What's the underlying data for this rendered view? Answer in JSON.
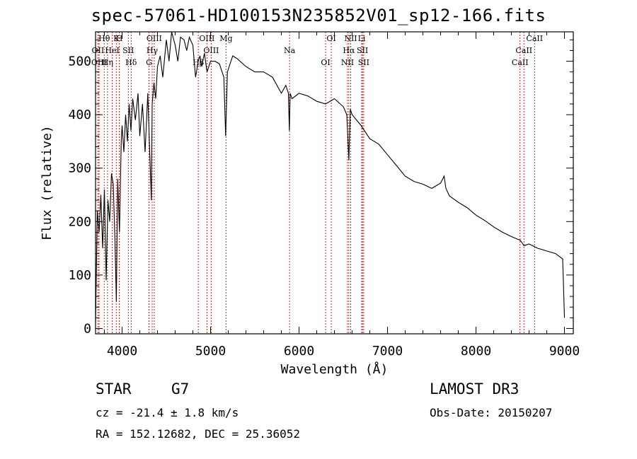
{
  "chart_data": {
    "type": "line",
    "title": "spec-57061-HD100153N235852V01_sp12-166.fits",
    "xlabel": "Wavelength (Å)",
    "ylabel": "Flux (relative)",
    "xlim": [
      3700,
      9100
    ],
    "ylim": [
      -10,
      555
    ],
    "x_ticks": [
      4000,
      5000,
      6000,
      7000,
      8000,
      9000
    ],
    "y_ticks": [
      0,
      100,
      200,
      300,
      400,
      500
    ],
    "grid": false,
    "series": [
      {
        "name": "spectrum",
        "x": [
          3700,
          3720,
          3740,
          3760,
          3780,
          3800,
          3820,
          3840,
          3860,
          3880,
          3900,
          3920,
          3935,
          3950,
          3970,
          3990,
          4000,
          4020,
          4040,
          4060,
          4080,
          4100,
          4120,
          4150,
          4180,
          4200,
          4230,
          4260,
          4290,
          4310,
          4330,
          4340,
          4360,
          4380,
          4400,
          4430,
          4460,
          4500,
          4530,
          4560,
          4600,
          4630,
          4660,
          4700,
          4730,
          4760,
          4800,
          4830,
          4860,
          4880,
          4900,
          4930,
          4960,
          5000,
          5050,
          5100,
          5150,
          5170,
          5190,
          5250,
          5300,
          5400,
          5500,
          5600,
          5700,
          5800,
          5850,
          5880,
          5890,
          5900,
          5920,
          6000,
          6100,
          6200,
          6300,
          6400,
          6500,
          6540,
          6563,
          6580,
          6600,
          6700,
          6800,
          6900,
          7000,
          7100,
          7200,
          7300,
          7400,
          7500,
          7600,
          7640,
          7660,
          7700,
          7800,
          7900,
          8000,
          8100,
          8200,
          8300,
          8400,
          8500,
          8542,
          8600,
          8700,
          8800,
          8900,
          8980,
          9000
        ],
        "values": [
          10,
          220,
          180,
          250,
          150,
          260,
          90,
          240,
          200,
          290,
          270,
          160,
          50,
          280,
          180,
          350,
          380,
          330,
          400,
          350,
          420,
          370,
          430,
          390,
          440,
          360,
          420,
          330,
          440,
          340,
          240,
          420,
          460,
          430,
          490,
          510,
          470,
          540,
          500,
          555,
          530,
          500,
          545,
          540,
          520,
          545,
          530,
          470,
          500,
          510,
          490,
          515,
          480,
          500,
          500,
          495,
          470,
          360,
          480,
          510,
          505,
          490,
          480,
          480,
          470,
          440,
          455,
          440,
          370,
          440,
          430,
          440,
          435,
          425,
          420,
          430,
          415,
          400,
          315,
          410,
          400,
          380,
          355,
          345,
          325,
          305,
          285,
          275,
          270,
          262,
          272,
          285,
          262,
          248,
          236,
          226,
          212,
          202,
          190,
          180,
          172,
          165,
          155,
          158,
          150,
          145,
          140,
          130,
          20
        ]
      }
    ],
    "spectral_lines": [
      {
        "label": "Hθ",
        "wavelength": 3798
      },
      {
        "label": "OII",
        "wavelength": 3727
      },
      {
        "label": "OIII",
        "wavelength": 3740
      },
      {
        "label": "K",
        "wavelength": 3934
      },
      {
        "label": "HeI",
        "wavelength": 3889
      },
      {
        "label": "Hη",
        "wavelength": 3835
      },
      {
        "label": "H",
        "wavelength": 3968
      },
      {
        "label": "SII",
        "wavelength": 4070
      },
      {
        "label": "Hδ",
        "wavelength": 4102
      },
      {
        "label": "OIII",
        "wavelength": 4363
      },
      {
        "label": "Hγ",
        "wavelength": 4340
      },
      {
        "label": "G",
        "wavelength": 4304
      },
      {
        "label": "OIII",
        "wavelength": 4959
      },
      {
        "label": "OIII",
        "wavelength": 5007
      },
      {
        "label": "Hβ",
        "wavelength": 4861
      },
      {
        "label": "Mg",
        "wavelength": 5175
      },
      {
        "label": "Na",
        "wavelength": 5893
      },
      {
        "label": "OI",
        "wavelength": 6300
      },
      {
        "label": "OI",
        "wavelength": 6364
      },
      {
        "label": "Hα",
        "wavelength": 6563
      },
      {
        "label": "NII",
        "wavelength": 6548
      },
      {
        "label": "NII",
        "wavelength": 6584
      },
      {
        "label": "SII",
        "wavelength": 6717
      },
      {
        "label": "SII",
        "wavelength": 6731
      },
      {
        "label": "Li",
        "wavelength": 6708
      },
      {
        "label": "CaII",
        "wavelength": 8542
      },
      {
        "label": "CaII",
        "wavelength": 8498
      },
      {
        "label": "CaII",
        "wavelength": 8662
      }
    ]
  },
  "info": {
    "object_class": "STAR",
    "subclass": "G7",
    "survey": "LAMOST DR3",
    "cz": "cz = -21.4 ± 1.8 km/s",
    "obs_date": "Obs-Date: 20150207",
    "coords": "RA = 152.12682, DEC =  25.36052"
  },
  "colors": {
    "line": "#000000",
    "marker": "#cc2222",
    "axis": "#000000"
  }
}
